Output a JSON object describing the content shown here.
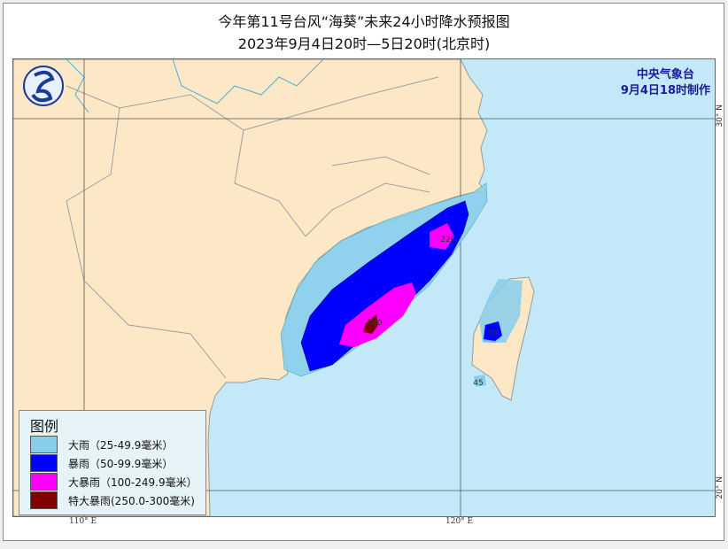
{
  "title": "今年第11号台风“海葵”未来24小时降水预报图",
  "subtitle": "2023年9月4日20时—5日20时(北京时)",
  "agency": {
    "name": "中央气象台",
    "issued": "9月4日18时制作"
  },
  "legend": {
    "title": "图例",
    "items": [
      {
        "label": "大雨（25-49.9毫米）",
        "color": "#87ceeb"
      },
      {
        "label": "暴雨（50-99.9毫米）",
        "color": "#0000ff"
      },
      {
        "label": "大暴雨（100-249.9毫米）",
        "color": "#ff00ff"
      },
      {
        "label": "特大暴雨(250.0-300毫米)",
        "color": "#800000"
      }
    ]
  },
  "axes": {
    "lon": [
      "110° E",
      "120° E"
    ],
    "lat": [
      "30° N",
      "20° N"
    ]
  },
  "max_labels": [
    "220",
    "300",
    "70",
    "45"
  ],
  "colors": {
    "land": "#fce8c6",
    "sea": "#c3e9f9",
    "river": "#4fb0d0"
  }
}
